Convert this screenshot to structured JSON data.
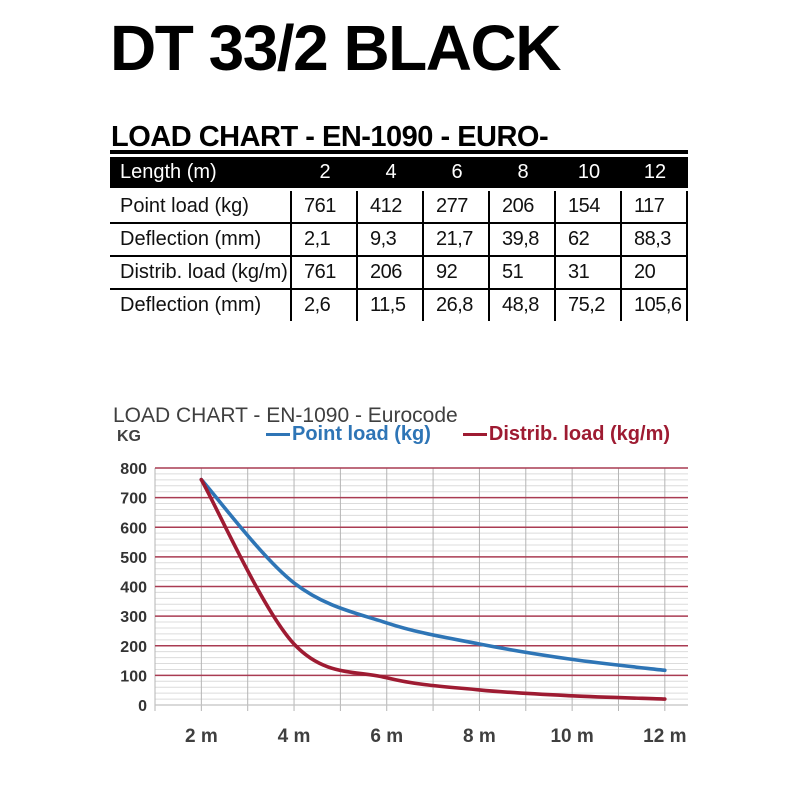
{
  "header": {
    "title": "DT 33/2 BLACK",
    "subtitle": "LOAD CHART - EN-1090 - EURO-"
  },
  "table": {
    "header": {
      "label": "Length (m)",
      "columns": [
        "2",
        "4",
        "6",
        "8",
        "10",
        "12"
      ]
    },
    "rows": [
      {
        "label": "Point load (kg)",
        "values": [
          "761",
          "412",
          "277",
          "206",
          "154",
          "117"
        ]
      },
      {
        "label": "Deflection (mm)",
        "values": [
          "2,1",
          "9,3",
          "21,7",
          "39,8",
          "62",
          "88,3"
        ]
      },
      {
        "label": "Distrib. load (kg/m)",
        "values": [
          "761",
          "206",
          "92",
          "51",
          "31",
          "20"
        ]
      },
      {
        "label": "Deflection (mm)",
        "values": [
          "2,6",
          "11,5",
          "26,8",
          "48,8",
          "75,2",
          "105,6"
        ]
      }
    ]
  },
  "chart": {
    "title": "LOAD CHART - EN-1090 - Eurocode",
    "y_axis_label": "KG"
  },
  "chart_data": {
    "type": "line",
    "title": "LOAD CHART - EN-1090 - Eurocode",
    "ylabel": "KG",
    "xlabel": "",
    "x": [
      2,
      4,
      6,
      8,
      10,
      12
    ],
    "x_tick_labels": [
      "2 m",
      "4 m",
      "6 m",
      "8 m",
      "10 m",
      "12 m"
    ],
    "y_tick_labels": [
      "0",
      "100",
      "200",
      "300",
      "400",
      "500",
      "600",
      "700",
      "800"
    ],
    "series": [
      {
        "name": "Point load (kg)",
        "color": "#2e75b6",
        "values": [
          761,
          412,
          277,
          206,
          154,
          117
        ]
      },
      {
        "name": "Distrib. load (kg/m)",
        "color": "#9e1b32",
        "values": [
          761,
          206,
          92,
          51,
          31,
          20
        ]
      }
    ],
    "xlim": [
      1,
      12.5
    ],
    "ylim": [
      0,
      800
    ],
    "y_major_step": 100,
    "y_minor_step": 20,
    "x_grid_step": 1,
    "grid": true,
    "legend_position": "top",
    "colors": {
      "major_grid": "#a93b52",
      "minor_grid": "#dcdcdc",
      "vertical_grid": "#b5b5b5",
      "zero_line": "#c2c2c2",
      "tick_text": "#3f3f3f"
    }
  }
}
